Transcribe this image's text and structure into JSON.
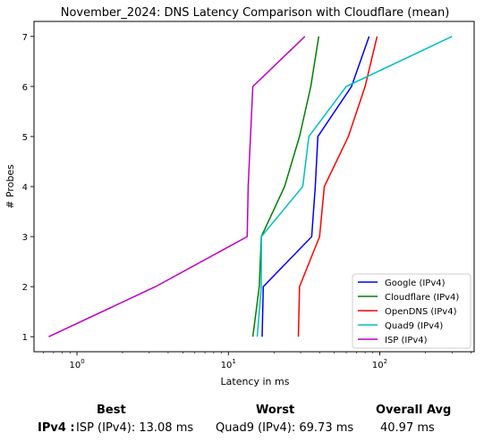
{
  "chart_data": {
    "type": "line",
    "title": "November_2024: DNS Latency Comparison with Cloudflare (mean)",
    "xlabel": "Latency in ms",
    "ylabel": "# Probes",
    "x_scale": "log",
    "xlim": [
      0.52,
      420
    ],
    "ylim": [
      0.7,
      7.3
    ],
    "x_ticks": [
      1,
      10,
      100
    ],
    "x_tick_labels": [
      "10^0",
      "10^1",
      "10^2"
    ],
    "y_ticks": [
      1,
      2,
      3,
      4,
      5,
      6,
      7
    ],
    "y_tick_labels": [
      "1",
      "2",
      "3",
      "4",
      "5",
      "6",
      "7"
    ],
    "grid": false,
    "legend_position": "lower-right",
    "series": [
      {
        "name": "Google (IPv4)",
        "color": "#0000ff",
        "x": [
          16.7,
          17.0,
          35.5,
          37.5,
          39.0,
          65.0,
          85.0
        ],
        "y": [
          1,
          2,
          3,
          4,
          5,
          6,
          7
        ]
      },
      {
        "name": "Cloudflare (IPv4)",
        "color": "#008000",
        "x": [
          14.5,
          16.0,
          16.5,
          23.5,
          29.5,
          35.0,
          39.5
        ],
        "y": [
          1,
          2,
          3,
          4,
          5,
          6,
          7
        ]
      },
      {
        "name": "OpenDNS (IPv4)",
        "color": "#ff0000",
        "x": [
          29.0,
          29.5,
          40.0,
          43.0,
          62.0,
          80.0,
          96.0
        ],
        "y": [
          1,
          2,
          3,
          4,
          5,
          6,
          7
        ]
      },
      {
        "name": "Quad9 (IPv4)",
        "color": "#00bfbf",
        "x": [
          15.5,
          16.5,
          16.5,
          31.0,
          34.0,
          60.0,
          300.0
        ],
        "y": [
          1,
          2,
          3,
          4,
          5,
          6,
          7
        ]
      },
      {
        "name": "ISP (IPv4)",
        "color": "#bf00bf",
        "x": [
          0.65,
          3.3,
          13.3,
          13.5,
          14.0,
          14.5,
          32.0
        ],
        "y": [
          1,
          2,
          3,
          4,
          5,
          6,
          7
        ]
      }
    ]
  },
  "stats": {
    "best_header": "Best",
    "worst_header": "Worst",
    "avg_header": "Overall Avg",
    "row_label": "IPv4 :",
    "best_value": "ISP (IPv4): 13.08 ms",
    "worst_value": "Quad9 (IPv4): 69.73 ms",
    "avg_value": "40.97 ms"
  }
}
